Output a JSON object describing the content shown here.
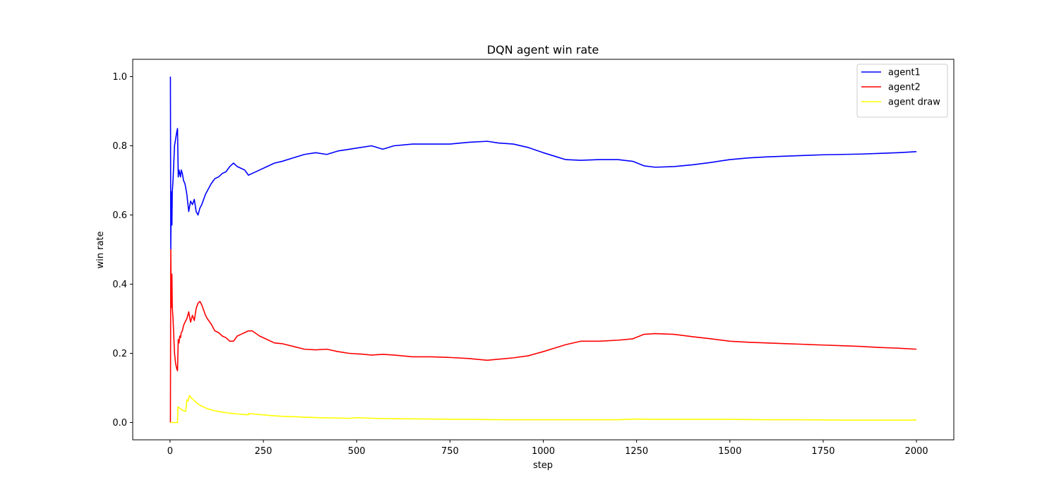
{
  "chart_data": {
    "type": "line",
    "title": "DQN agent win rate",
    "xlabel": "step",
    "ylabel": "win rate",
    "xlim": [
      -100,
      2100
    ],
    "ylim": [
      -0.05,
      1.05
    ],
    "xticks": [
      0,
      250,
      500,
      750,
      1000,
      1250,
      1500,
      1750,
      2000
    ],
    "xtick_labels": [
      "0",
      "250",
      "500",
      "750",
      "1000",
      "1250",
      "1500",
      "1750",
      "2000"
    ],
    "yticks": [
      0.0,
      0.2,
      0.4,
      0.6,
      0.8,
      1.0
    ],
    "ytick_labels": [
      "0.0",
      "0.2",
      "0.4",
      "0.6",
      "0.8",
      "1.0"
    ],
    "grid": false,
    "legend_position": "top-right",
    "series": [
      {
        "name": "agent1",
        "color": "#0000ff",
        "x": [
          1,
          2,
          3,
          4,
          5,
          6,
          8,
          10,
          12,
          15,
          18,
          20,
          22,
          24,
          26,
          28,
          30,
          33,
          36,
          40,
          45,
          50,
          55,
          60,
          65,
          70,
          75,
          80,
          85,
          90,
          95,
          100,
          110,
          120,
          130,
          140,
          150,
          160,
          170,
          180,
          190,
          200,
          210,
          220,
          240,
          260,
          280,
          300,
          330,
          360,
          390,
          420,
          450,
          480,
          510,
          540,
          570,
          600,
          650,
          700,
          750,
          800,
          850,
          880,
          920,
          960,
          1000,
          1030,
          1060,
          1100,
          1150,
          1200,
          1240,
          1270,
          1300,
          1350,
          1400,
          1450,
          1500,
          1550,
          1600,
          1650,
          1700,
          1750,
          1800,
          1850,
          1900,
          1950,
          2000
        ],
        "values": [
          1.0,
          0.5,
          0.667,
          0.6,
          0.571,
          0.667,
          0.7,
          0.75,
          0.8,
          0.82,
          0.84,
          0.85,
          0.71,
          0.73,
          0.72,
          0.71,
          0.73,
          0.72,
          0.7,
          0.69,
          0.66,
          0.61,
          0.64,
          0.63,
          0.645,
          0.61,
          0.6,
          0.62,
          0.63,
          0.645,
          0.66,
          0.67,
          0.69,
          0.705,
          0.71,
          0.72,
          0.725,
          0.74,
          0.75,
          0.74,
          0.735,
          0.73,
          0.715,
          0.72,
          0.73,
          0.74,
          0.75,
          0.755,
          0.765,
          0.775,
          0.78,
          0.775,
          0.785,
          0.79,
          0.795,
          0.8,
          0.79,
          0.8,
          0.805,
          0.805,
          0.805,
          0.81,
          0.813,
          0.808,
          0.805,
          0.795,
          0.78,
          0.77,
          0.76,
          0.758,
          0.76,
          0.76,
          0.755,
          0.742,
          0.738,
          0.74,
          0.745,
          0.752,
          0.76,
          0.765,
          0.768,
          0.77,
          0.772,
          0.774,
          0.775,
          0.776,
          0.778,
          0.78,
          0.783
        ]
      },
      {
        "name": "agent2",
        "color": "#ff0000",
        "x": [
          1,
          2,
          3,
          4,
          5,
          6,
          8,
          10,
          12,
          15,
          18,
          20,
          22,
          24,
          26,
          28,
          30,
          33,
          36,
          40,
          45,
          50,
          55,
          60,
          65,
          70,
          75,
          80,
          85,
          90,
          95,
          100,
          110,
          120,
          130,
          140,
          150,
          160,
          170,
          180,
          190,
          200,
          210,
          220,
          240,
          260,
          280,
          300,
          330,
          360,
          390,
          420,
          450,
          480,
          510,
          540,
          570,
          600,
          650,
          700,
          750,
          800,
          850,
          880,
          920,
          960,
          1000,
          1030,
          1060,
          1100,
          1150,
          1200,
          1240,
          1270,
          1300,
          1350,
          1400,
          1450,
          1500,
          1550,
          1600,
          1650,
          1700,
          1750,
          1800,
          1850,
          1900,
          1950,
          2000
        ],
        "values": [
          0.0,
          0.5,
          0.333,
          0.4,
          0.429,
          0.333,
          0.3,
          0.25,
          0.2,
          0.17,
          0.155,
          0.15,
          0.24,
          0.23,
          0.25,
          0.245,
          0.26,
          0.265,
          0.28,
          0.29,
          0.3,
          0.32,
          0.29,
          0.31,
          0.295,
          0.33,
          0.345,
          0.35,
          0.34,
          0.325,
          0.31,
          0.3,
          0.285,
          0.265,
          0.26,
          0.25,
          0.245,
          0.235,
          0.235,
          0.25,
          0.255,
          0.26,
          0.265,
          0.265,
          0.25,
          0.24,
          0.23,
          0.228,
          0.22,
          0.212,
          0.21,
          0.212,
          0.205,
          0.2,
          0.198,
          0.195,
          0.197,
          0.195,
          0.19,
          0.19,
          0.188,
          0.185,
          0.18,
          0.183,
          0.187,
          0.193,
          0.205,
          0.215,
          0.225,
          0.235,
          0.235,
          0.238,
          0.242,
          0.255,
          0.257,
          0.255,
          0.248,
          0.242,
          0.235,
          0.232,
          0.23,
          0.228,
          0.226,
          0.224,
          0.222,
          0.22,
          0.217,
          0.215,
          0.212
        ]
      },
      {
        "name": "agent draw",
        "color": "#ffff00",
        "x": [
          1,
          2,
          4,
          8,
          12,
          16,
          20,
          21,
          24,
          28,
          32,
          38,
          42,
          45,
          48,
          52,
          56,
          60,
          70,
          80,
          90,
          100,
          120,
          140,
          160,
          180,
          200,
          210,
          211,
          230,
          260,
          300,
          350,
          400,
          450,
          480,
          500,
          550,
          600,
          700,
          800,
          900,
          1000,
          1100,
          1200,
          1250,
          1300,
          1400,
          1500,
          1600,
          1700,
          1800,
          1900,
          2000
        ],
        "values": [
          0.0,
          0.0,
          0.0,
          0.0,
          0.0,
          0.0,
          0.0,
          0.045,
          0.043,
          0.04,
          0.036,
          0.034,
          0.032,
          0.065,
          0.062,
          0.078,
          0.072,
          0.068,
          0.058,
          0.05,
          0.045,
          0.04,
          0.034,
          0.03,
          0.027,
          0.025,
          0.023,
          0.022,
          0.026,
          0.024,
          0.021,
          0.018,
          0.016,
          0.014,
          0.013,
          0.012,
          0.014,
          0.012,
          0.011,
          0.01,
          0.009,
          0.008,
          0.008,
          0.008,
          0.008,
          0.01,
          0.009,
          0.009,
          0.009,
          0.008,
          0.008,
          0.007,
          0.007,
          0.007
        ]
      }
    ]
  }
}
